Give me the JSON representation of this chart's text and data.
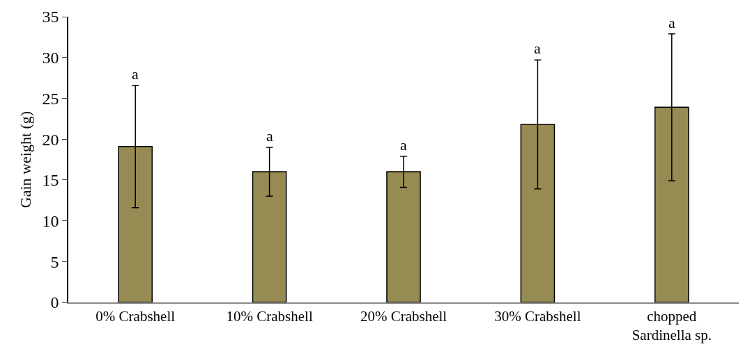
{
  "chart_data": {
    "type": "bar",
    "ylabel": "Gain weight (g)",
    "categories": [
      "0% Crabshell",
      "10% Crabshell",
      "20% Crabshell",
      "30% Crabshell",
      "chopped\nSardinella sp."
    ],
    "values": [
      19.1,
      16.0,
      16.0,
      21.8,
      23.9
    ],
    "errors": [
      7.5,
      3.0,
      1.9,
      7.9,
      9.0
    ],
    "color": "#968b52",
    "ylim": [
      0,
      35
    ],
    "yticks": [
      0,
      5,
      10,
      15,
      20,
      25,
      30,
      35
    ],
    "annotations": [
      "a",
      "a",
      "a",
      "a",
      "a"
    ]
  }
}
